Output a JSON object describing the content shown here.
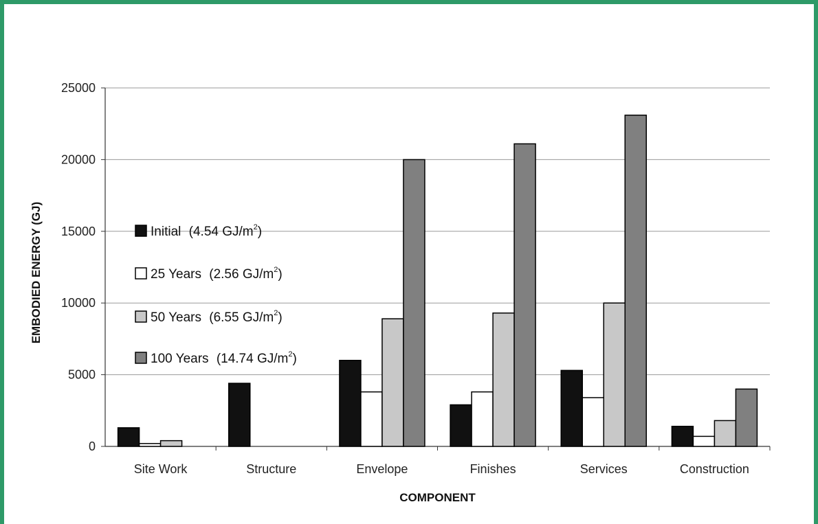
{
  "chart_data": {
    "type": "bar",
    "title": "",
    "xlabel": "COMPONENT",
    "ylabel": "EMBODIED ENERGY (GJ)",
    "ylim": [
      0,
      25000
    ],
    "yticks": [
      0,
      5000,
      10000,
      15000,
      20000,
      25000
    ],
    "grid": true,
    "legend_position": "left",
    "categories": [
      "Site Work",
      "Structure",
      "Envelope",
      "Finishes",
      "Services",
      "Construction"
    ],
    "series": [
      {
        "name": "Initial",
        "rate_label": "(4.54 GJ/m",
        "color": "#111111",
        "values": [
          1300,
          4400,
          6000,
          2900,
          5300,
          1400
        ]
      },
      {
        "name": "25 Years",
        "rate_label": "(2.56 GJ/m",
        "color": "#ffffff",
        "values": [
          200,
          0,
          3800,
          3800,
          3400,
          700
        ]
      },
      {
        "name": "50 Years",
        "rate_label": "(6.55 GJ/m",
        "color": "#c8c8c8",
        "values": [
          400,
          0,
          8900,
          9300,
          10000,
          1800
        ]
      },
      {
        "name": "100 Years",
        "rate_label": "(14.74 GJ/m",
        "color": "#808080",
        "values": [
          0,
          0,
          20000,
          21100,
          23100,
          4000
        ]
      }
    ],
    "rate_superscript": "2",
    "rate_close": ")"
  }
}
